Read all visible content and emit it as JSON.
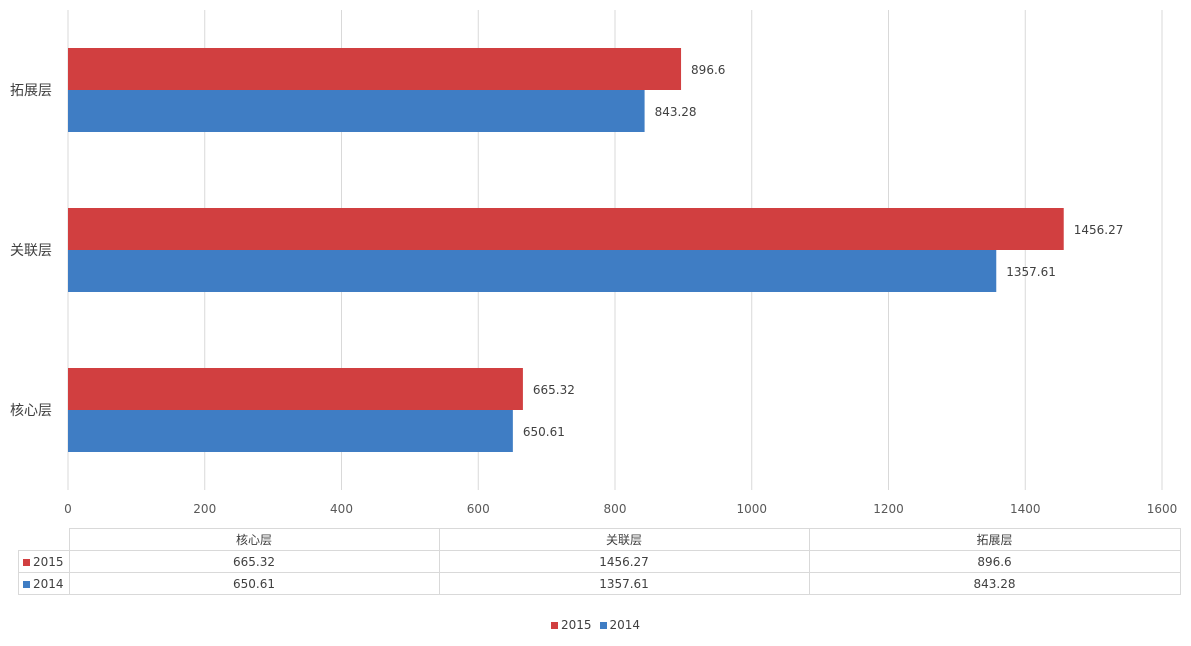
{
  "chart_data": {
    "type": "bar",
    "orientation": "horizontal",
    "categories": [
      "核心层",
      "关联层",
      "拓展层"
    ],
    "series": [
      {
        "name": "2015",
        "values": [
          665.32,
          1456.27,
          896.6
        ],
        "color": "#d13f40"
      },
      {
        "name": "2014",
        "values": [
          650.61,
          1357.61,
          843.28
        ],
        "color": "#3f7dc4"
      }
    ],
    "xlim": [
      0,
      1600
    ],
    "x_ticks": [
      0,
      200,
      400,
      600,
      800,
      1000,
      1200,
      1400,
      1600
    ],
    "value_labels": {
      "2015": [
        "665.32",
        "1456.27",
        "896.6"
      ],
      "2014": [
        "650.61",
        "1357.61",
        "843.28"
      ]
    },
    "grid": true,
    "legend": "bottom-center",
    "data_table": true
  }
}
